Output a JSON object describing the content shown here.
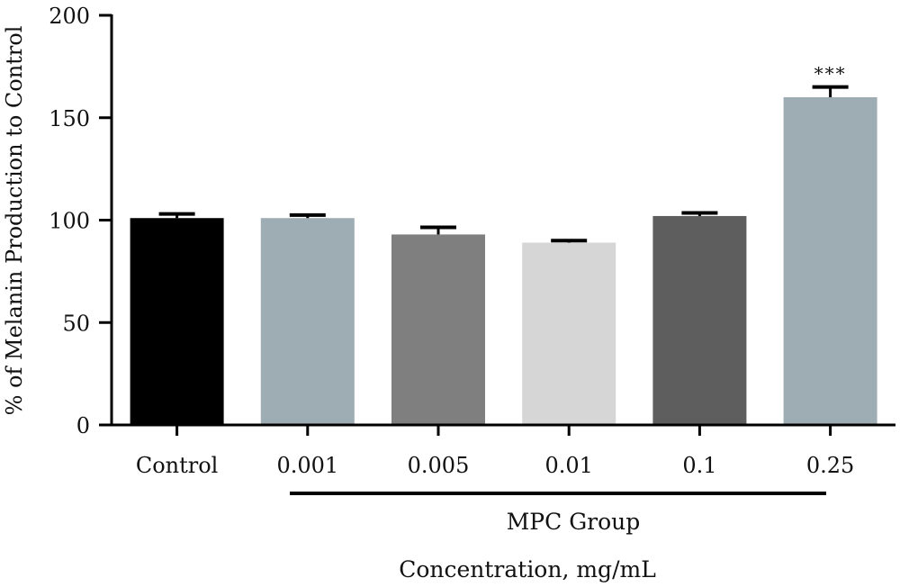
{
  "chart_data": {
    "type": "bar",
    "ylabel": "% of Melanin Production to Control",
    "xlabel": "Concentration, mg/mL",
    "group_label": "MPC Group",
    "ylim": [
      0,
      200
    ],
    "yticks": [
      0,
      50,
      100,
      150,
      200
    ],
    "ytick_labels": [
      "0",
      "50",
      "100",
      "150",
      "200"
    ],
    "categories": [
      "Control",
      "0.001",
      "0.005",
      "0.01",
      "0.1",
      "0.25"
    ],
    "values": [
      101,
      101,
      93,
      89,
      102,
      160
    ],
    "errors": [
      2,
      1.5,
      3.5,
      1,
      1.5,
      5
    ],
    "colors": [
      "#000000",
      "#9eacb4",
      "#7f7f7f",
      "#d6d6d6",
      "#5e5e5e",
      "#9eacb4"
    ],
    "annotations": [
      {
        "category": "0.25",
        "text": "***"
      }
    ]
  }
}
